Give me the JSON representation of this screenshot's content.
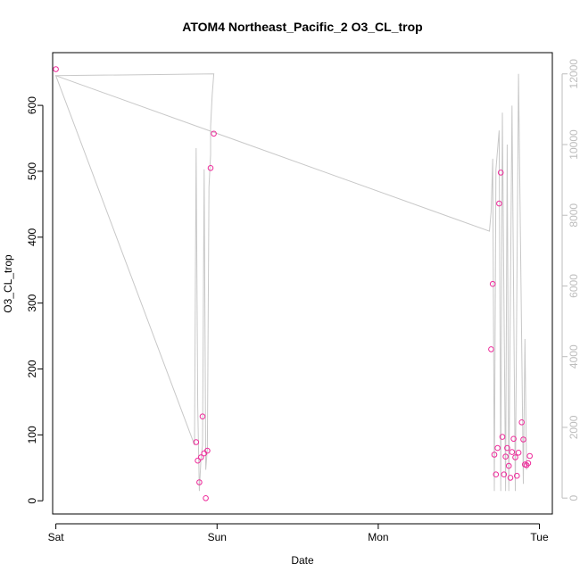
{
  "chart_data": {
    "type": "scatter",
    "title": "ATOM4 Northeast_Pacific_2 O3_CL_trop",
    "xlabel": "Date",
    "ylabel": "O3_CL_trop",
    "x_ticks": [
      "Sat",
      "Sun",
      "Mon",
      "Tue"
    ],
    "xlim": [
      -0.02,
      3.08
    ],
    "ylim": [
      -20,
      680
    ],
    "y_ticks": [
      0,
      100,
      200,
      300,
      400,
      500,
      600
    ],
    "y2lim": [
      -450,
      12600
    ],
    "y2_ticks": [
      0,
      2000,
      4000,
      6000,
      8000,
      10000,
      12000
    ],
    "grid": false,
    "colors": {
      "points": "#ee2a9a",
      "altitude_line": "#c8c8c8",
      "right_axis": "#bdbdbd"
    },
    "series": [
      {
        "values": [
          {
            "x": 0.0,
            "y": 655
          },
          {
            "x": 0.87,
            "y": 89
          },
          {
            "x": 0.88,
            "y": 61
          },
          {
            "x": 0.89,
            "y": 28
          },
          {
            "x": 0.9,
            "y": 66
          },
          {
            "x": 0.91,
            "y": 128
          },
          {
            "x": 0.92,
            "y": 72
          },
          {
            "x": 0.93,
            "y": 4
          },
          {
            "x": 0.94,
            "y": 76
          },
          {
            "x": 0.96,
            "y": 505
          },
          {
            "x": 0.98,
            "y": 557
          },
          {
            "x": 2.7,
            "y": 230
          },
          {
            "x": 2.71,
            "y": 329
          },
          {
            "x": 2.72,
            "y": 70
          },
          {
            "x": 2.73,
            "y": 40
          },
          {
            "x": 2.74,
            "y": 80
          },
          {
            "x": 2.75,
            "y": 451
          },
          {
            "x": 2.76,
            "y": 498
          },
          {
            "x": 2.77,
            "y": 97
          },
          {
            "x": 2.78,
            "y": 40
          },
          {
            "x": 2.79,
            "y": 67
          },
          {
            "x": 2.8,
            "y": 80
          },
          {
            "x": 2.81,
            "y": 53
          },
          {
            "x": 2.82,
            "y": 35
          },
          {
            "x": 2.83,
            "y": 74
          },
          {
            "x": 2.84,
            "y": 94
          },
          {
            "x": 2.85,
            "y": 66
          },
          {
            "x": 2.86,
            "y": 38
          },
          {
            "x": 2.87,
            "y": 73
          },
          {
            "x": 2.89,
            "y": 119
          },
          {
            "x": 2.9,
            "y": 93
          },
          {
            "x": 2.91,
            "y": 55
          },
          {
            "x": 2.92,
            "y": 54
          },
          {
            "x": 2.93,
            "y": 57
          },
          {
            "x": 2.94,
            "y": 68
          }
        ]
      }
    ],
    "altitude_line": [
      {
        "x": 0.0,
        "y2": 11950
      },
      {
        "x": 0.98,
        "y2": 12000
      },
      {
        "x": 0.97,
        "y2": 11400
      },
      {
        "x": 0.96,
        "y2": 10500
      },
      {
        "x": 0.96,
        "y2": 9700
      },
      {
        "x": 0.95,
        "y2": 8800
      },
      {
        "x": 0.94,
        "y2": 1400
      },
      {
        "x": 0.93,
        "y2": 800
      },
      {
        "x": 0.92,
        "y2": 9300
      },
      {
        "x": 0.91,
        "y2": 1500
      },
      {
        "x": 0.9,
        "y2": 1100
      },
      {
        "x": 0.89,
        "y2": 200
      },
      {
        "x": 0.88,
        "y2": 2600
      },
      {
        "x": 0.87,
        "y2": 9900
      },
      {
        "x": 0.86,
        "y2": 1500
      },
      {
        "x": 0.0,
        "y2": 11950
      },
      {
        "x": 2.69,
        "y2": 7550
      },
      {
        "x": 2.7,
        "y2": 8100
      },
      {
        "x": 2.71,
        "y2": 9600
      },
      {
        "x": 2.72,
        "y2": 200
      },
      {
        "x": 2.73,
        "y2": 9300
      },
      {
        "x": 2.75,
        "y2": 10400
      },
      {
        "x": 2.76,
        "y2": 200
      },
      {
        "x": 2.77,
        "y2": 10900
      },
      {
        "x": 2.79,
        "y2": 200
      },
      {
        "x": 2.8,
        "y2": 10000
      },
      {
        "x": 2.81,
        "y2": 200
      },
      {
        "x": 2.83,
        "y2": 11100
      },
      {
        "x": 2.85,
        "y2": 200
      },
      {
        "x": 2.87,
        "y2": 12000
      },
      {
        "x": 2.9,
        "y2": 400
      },
      {
        "x": 2.91,
        "y2": 4500
      },
      {
        "x": 2.92,
        "y2": 800
      }
    ]
  }
}
